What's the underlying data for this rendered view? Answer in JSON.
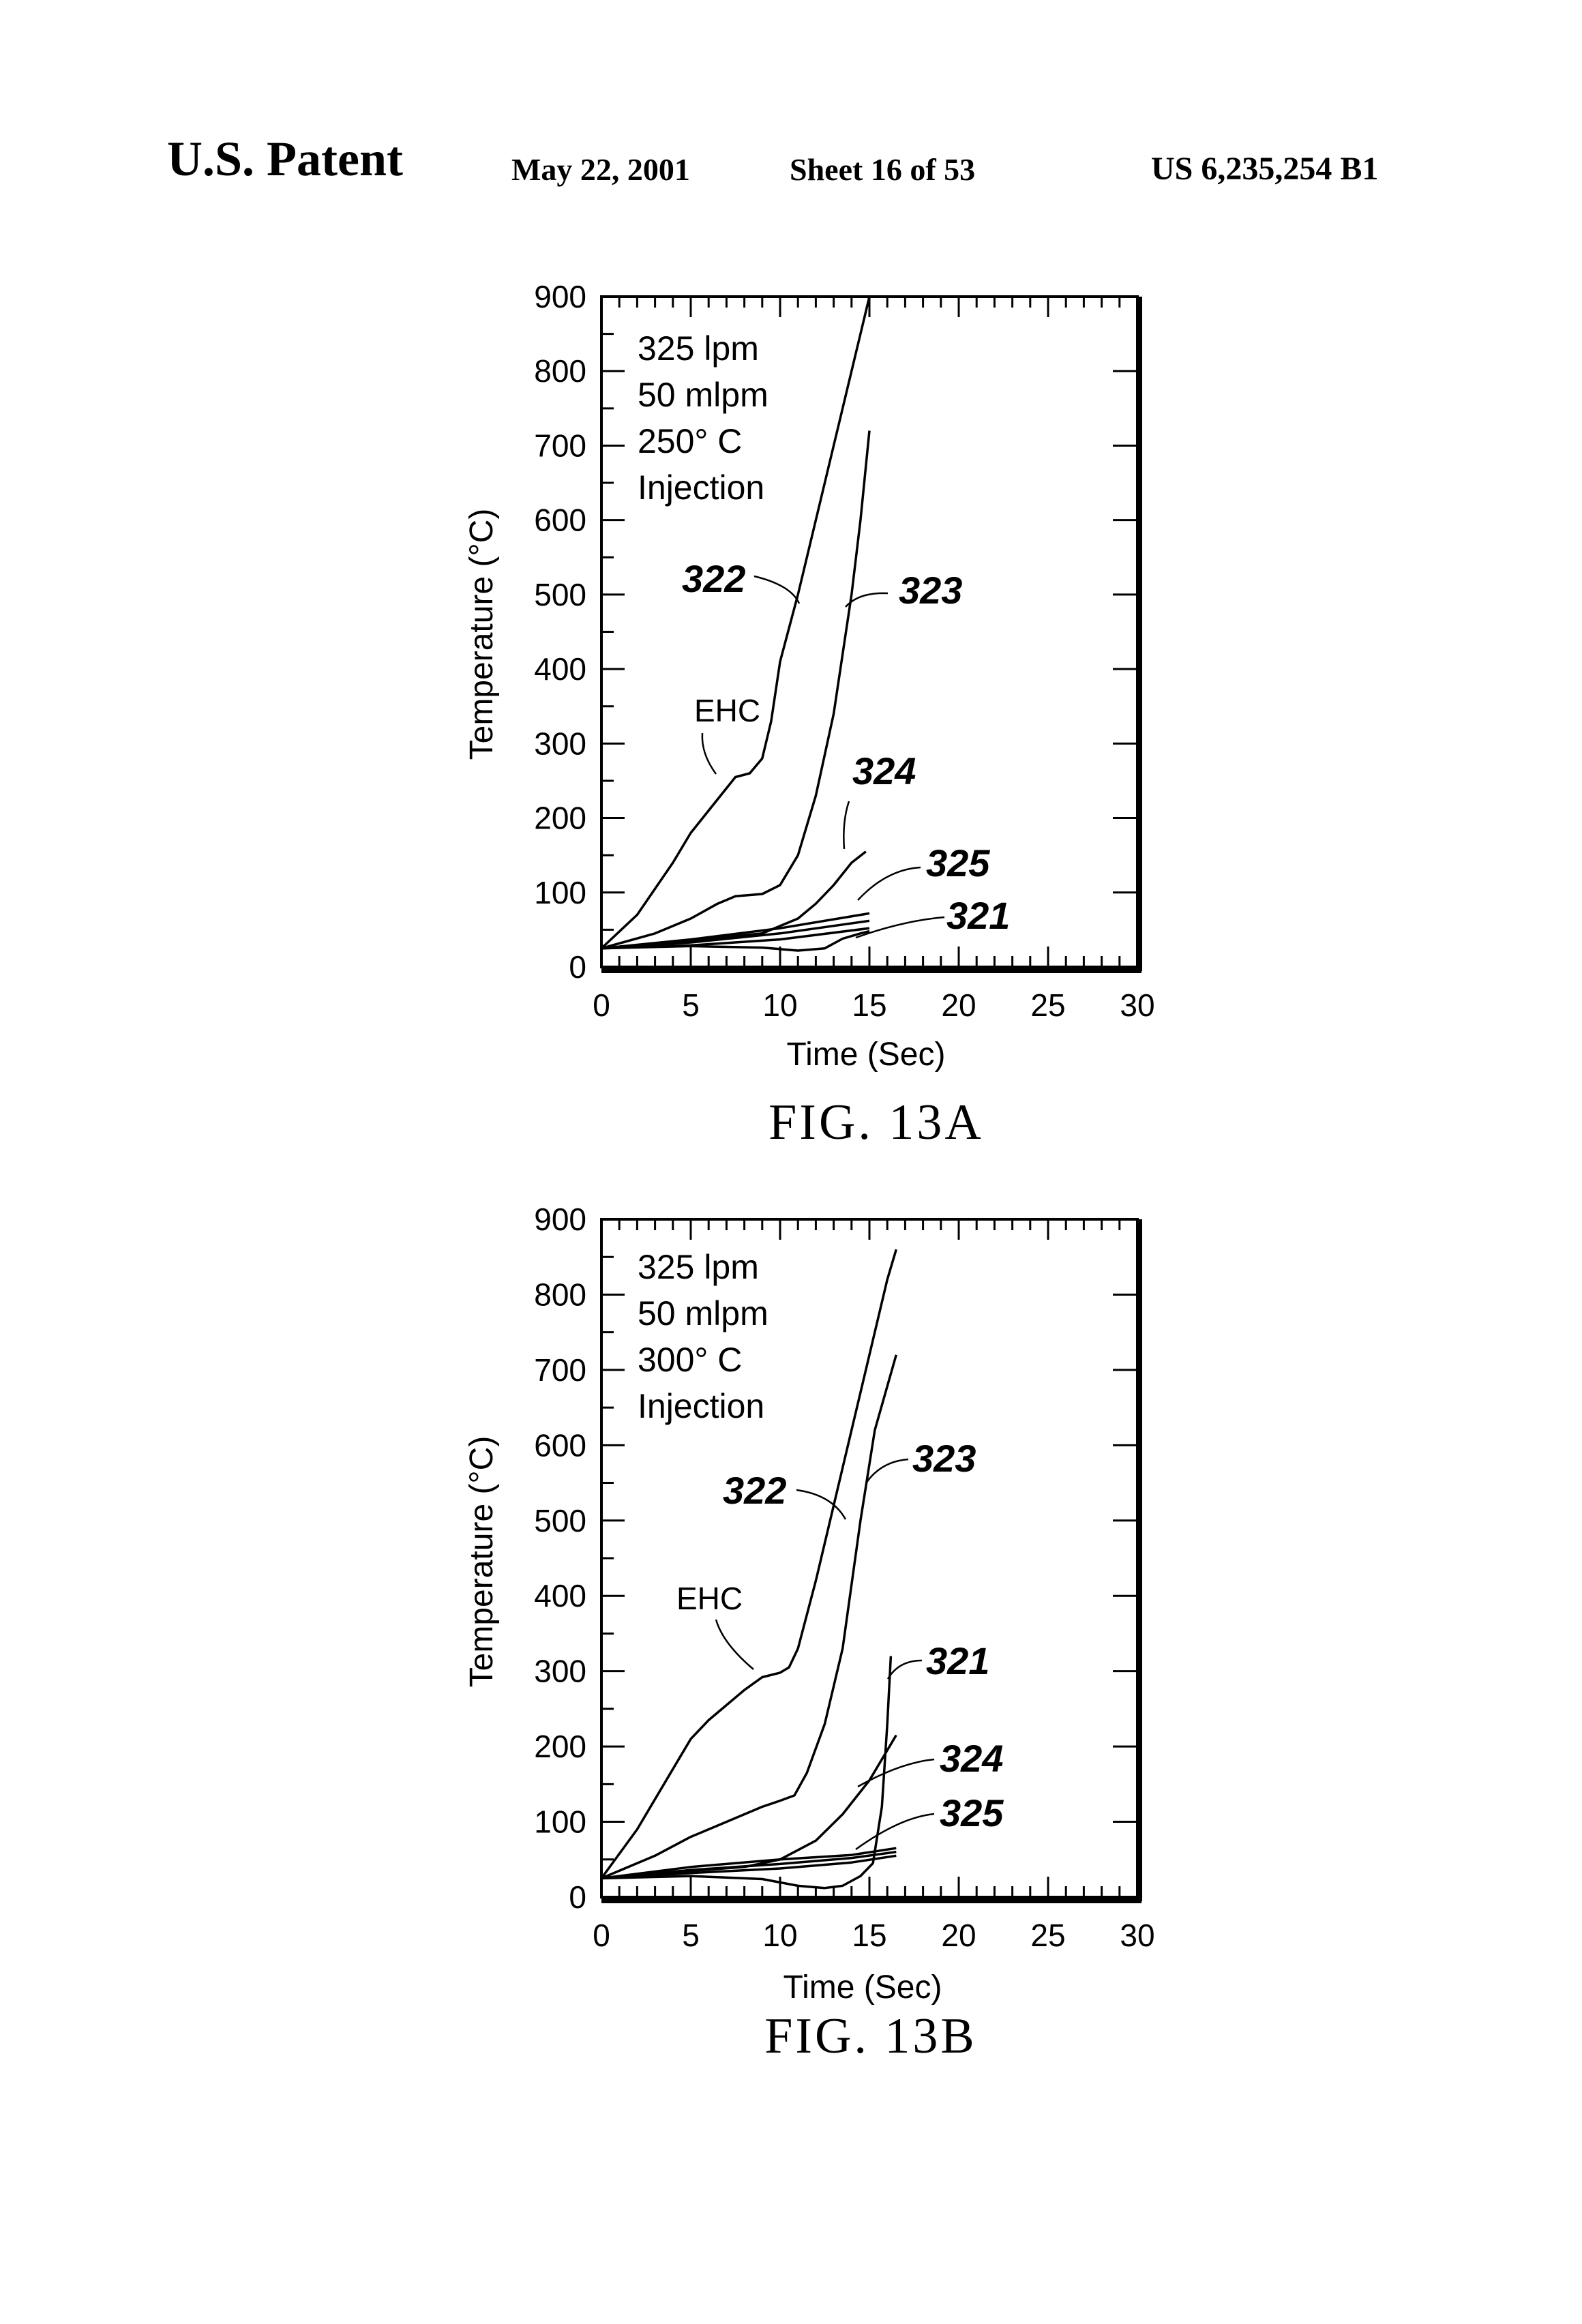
{
  "header": {
    "patent_label": "U.S. Patent",
    "date": "May 22, 2001",
    "sheet": "Sheet 16 of 53",
    "patent_number": "US 6,235,254 B1"
  },
  "chart_data": [
    {
      "type": "line",
      "title": "FIG. 13A",
      "xlabel": "Time (Sec)",
      "ylabel": "Temperature (°C)",
      "xlim": [
        0,
        30
      ],
      "ylim": [
        0,
        900
      ],
      "xticks": [
        "0",
        "5",
        "10",
        "15",
        "20",
        "25",
        "30"
      ],
      "yticks": [
        "0",
        "100",
        "200",
        "300",
        "400",
        "500",
        "600",
        "700",
        "800",
        "900"
      ],
      "annotation_lines": [
        "325 lpm",
        "50 mlpm",
        "250° C",
        "Injection"
      ],
      "ehc_label": "EHC",
      "series": [
        {
          "name": "322",
          "points": [
            [
              0,
              25
            ],
            [
              2,
              70
            ],
            [
              4,
              140
            ],
            [
              5,
              180
            ],
            [
              6,
              210
            ],
            [
              7,
              240
            ],
            [
              7.5,
              255
            ],
            [
              8.3,
              260
            ],
            [
              9,
              280
            ],
            [
              9.5,
              330
            ],
            [
              10,
              410
            ],
            [
              11,
              500
            ],
            [
              12,
              600
            ],
            [
              13,
              700
            ],
            [
              14,
              800
            ],
            [
              15,
              900
            ]
          ]
        },
        {
          "name": "323",
          "points": [
            [
              0,
              25
            ],
            [
              3,
              45
            ],
            [
              5,
              65
            ],
            [
              6.5,
              85
            ],
            [
              7.5,
              95
            ],
            [
              9,
              98
            ],
            [
              10,
              110
            ],
            [
              11,
              150
            ],
            [
              12,
              230
            ],
            [
              13,
              340
            ],
            [
              14,
              500
            ],
            [
              14.5,
              600
            ],
            [
              15,
              720
            ]
          ]
        },
        {
          "name": "324",
          "points": [
            [
              0,
              25
            ],
            [
              3,
              30
            ],
            [
              6,
              38
            ],
            [
              9,
              45
            ],
            [
              11,
              65
            ],
            [
              12,
              85
            ],
            [
              13,
              110
            ],
            [
              14,
              140
            ],
            [
              14.8,
              155
            ]
          ]
        },
        {
          "name": "325",
          "points": [
            [
              0,
              25
            ],
            [
              5,
              37
            ],
            [
              10,
              52
            ],
            [
              15,
              72
            ]
          ]
        },
        {
          "name": "321",
          "points": [
            [
              0,
              25
            ],
            [
              5,
              28
            ],
            [
              9,
              26
            ],
            [
              11,
              22
            ],
            [
              12.5,
              25
            ],
            [
              13.5,
              38
            ],
            [
              14.5,
              45
            ],
            [
              15,
              48
            ]
          ]
        },
        {
          "name": "",
          "points": [
            [
              0,
              25
            ],
            [
              5,
              33
            ],
            [
              10,
              45
            ],
            [
              15,
              62
            ]
          ]
        },
        {
          "name": "",
          "points": [
            [
              0,
              25
            ],
            [
              5,
              29
            ],
            [
              10,
              37
            ],
            [
              15,
              52
            ]
          ]
        }
      ],
      "callouts": [
        "322",
        "323",
        "324",
        "325",
        "321"
      ]
    },
    {
      "type": "line",
      "title": "FIG. 13B",
      "xlabel": "Time (Sec)",
      "ylabel": "Temperature (°C)",
      "xlim": [
        0,
        30
      ],
      "ylim": [
        0,
        900
      ],
      "xticks": [
        "0",
        "5",
        "10",
        "15",
        "20",
        "25",
        "30"
      ],
      "yticks": [
        "0",
        "100",
        "200",
        "300",
        "400",
        "500",
        "600",
        "700",
        "800",
        "900"
      ],
      "annotation_lines": [
        "325 lpm",
        "50 mlpm",
        "300° C",
        "Injection"
      ],
      "ehc_label": "EHC",
      "series": [
        {
          "name": "322",
          "points": [
            [
              0,
              25
            ],
            [
              2,
              90
            ],
            [
              4,
              170
            ],
            [
              5,
              210
            ],
            [
              6,
              235
            ],
            [
              8,
              275
            ],
            [
              9,
              292
            ],
            [
              10,
              298
            ],
            [
              10.5,
              305
            ],
            [
              11,
              330
            ],
            [
              12,
              420
            ],
            [
              13,
              520
            ],
            [
              14,
              620
            ],
            [
              15,
              720
            ],
            [
              16,
              820
            ],
            [
              16.5,
              860
            ]
          ]
        },
        {
          "name": "323",
          "points": [
            [
              0,
              25
            ],
            [
              3,
              55
            ],
            [
              5,
              80
            ],
            [
              7,
              100
            ],
            [
              9,
              120
            ],
            [
              10,
              128
            ],
            [
              10.8,
              135
            ],
            [
              11.5,
              165
            ],
            [
              12.5,
              230
            ],
            [
              13.5,
              330
            ],
            [
              14.5,
              500
            ],
            [
              15.3,
              620
            ],
            [
              16.5,
              720
            ]
          ]
        },
        {
          "name": "324",
          "points": [
            [
              0,
              25
            ],
            [
              4,
              33
            ],
            [
              8,
              40
            ],
            [
              10,
              50
            ],
            [
              12,
              75
            ],
            [
              13.5,
              110
            ],
            [
              15,
              155
            ],
            [
              16.5,
              215
            ]
          ]
        },
        {
          "name": "321",
          "points": [
            [
              0,
              25
            ],
            [
              5,
              28
            ],
            [
              9,
              24
            ],
            [
              11,
              15
            ],
            [
              12.5,
              12
            ],
            [
              13.5,
              15
            ],
            [
              14.5,
              28
            ],
            [
              15.2,
              45
            ],
            [
              15.7,
              120
            ],
            [
              16,
              230
            ],
            [
              16.2,
              320
            ]
          ]
        },
        {
          "name": "325",
          "points": [
            [
              0,
              25
            ],
            [
              5,
              40
            ],
            [
              10,
              50
            ],
            [
              14,
              56
            ],
            [
              16.5,
              65
            ]
          ]
        },
        {
          "name": "",
          "points": [
            [
              0,
              25
            ],
            [
              5,
              36
            ],
            [
              10,
              44
            ],
            [
              14,
              52
            ],
            [
              16.5,
              60
            ]
          ]
        },
        {
          "name": "",
          "points": [
            [
              0,
              25
            ],
            [
              5,
              32
            ],
            [
              10,
              38
            ],
            [
              14,
              46
            ],
            [
              16.5,
              55
            ]
          ]
        }
      ],
      "callouts": [
        "322",
        "323",
        "321",
        "324",
        "325"
      ]
    }
  ]
}
